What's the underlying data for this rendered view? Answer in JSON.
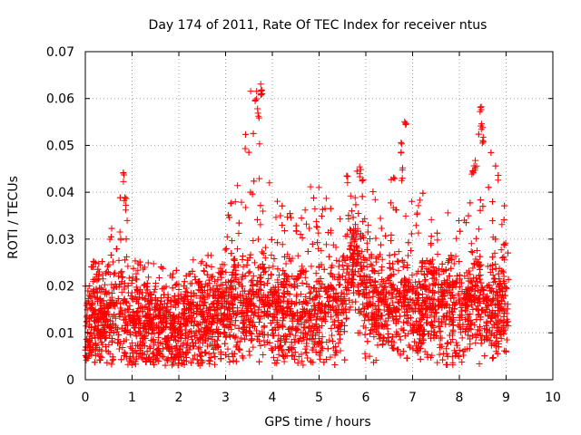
{
  "chart_data": {
    "type": "scatter",
    "marker": "plus",
    "title": "Day 174 of 2011, Rate Of TEC Index for receiver ntus",
    "xlabel": "GPS time / hours",
    "ylabel": "ROTI / TECUs",
    "xlim": [
      0,
      10
    ],
    "ylim": [
      0,
      0.07
    ],
    "xticks": [
      "0",
      "1",
      "2",
      "3",
      "4",
      "5",
      "6",
      "7",
      "8",
      "9",
      "10"
    ],
    "yticks": [
      "0",
      "0.01",
      "0.02",
      "0.03",
      "0.04",
      "0.05",
      "0.06",
      "0.07"
    ],
    "grid": true,
    "series": [
      {
        "name": "ROTI",
        "color": "#ff0000",
        "x_range": [
          0.0,
          9.05
        ],
        "approx_points": 5000,
        "envelope": {
          "x": [
            0.0,
            0.5,
            0.8,
            1.0,
            1.5,
            2.0,
            2.5,
            2.8,
            3.0,
            3.5,
            3.75,
            4.0,
            4.5,
            5.0,
            5.5,
            5.65,
            5.8,
            6.0,
            6.5,
            6.75,
            7.0,
            7.5,
            8.0,
            8.3,
            8.5,
            9.0,
            9.05
          ],
          "median": [
            0.012,
            0.013,
            0.014,
            0.012,
            0.011,
            0.011,
            0.012,
            0.013,
            0.014,
            0.016,
            0.017,
            0.015,
            0.013,
            0.014,
            0.014,
            0.022,
            0.025,
            0.018,
            0.014,
            0.015,
            0.015,
            0.015,
            0.015,
            0.016,
            0.016,
            0.015,
            0.015
          ],
          "upper": [
            0.023,
            0.03,
            0.044,
            0.03,
            0.02,
            0.021,
            0.025,
            0.035,
            0.036,
            0.062,
            0.064,
            0.045,
            0.038,
            0.043,
            0.035,
            0.045,
            0.046,
            0.042,
            0.042,
            0.051,
            0.045,
            0.036,
            0.036,
            0.047,
            0.059,
            0.036,
            0.03
          ]
        },
        "spikes": [
          {
            "x": 0.82,
            "y": 0.0445
          },
          {
            "x": 0.85,
            "y": 0.039
          },
          {
            "x": 3.65,
            "y": 0.062
          },
          {
            "x": 3.75,
            "y": 0.0635
          },
          {
            "x": 3.78,
            "y": 0.064
          },
          {
            "x": 3.7,
            "y": 0.058
          },
          {
            "x": 6.85,
            "y": 0.0565
          },
          {
            "x": 6.75,
            "y": 0.051
          },
          {
            "x": 6.78,
            "y": 0.0455
          },
          {
            "x": 8.3,
            "y": 0.047
          },
          {
            "x": 8.35,
            "y": 0.0475
          },
          {
            "x": 8.45,
            "y": 0.0585
          },
          {
            "x": 8.48,
            "y": 0.056
          },
          {
            "x": 8.5,
            "y": 0.052
          },
          {
            "x": 5.6,
            "y": 0.045
          },
          {
            "x": 5.88,
            "y": 0.046
          }
        ]
      }
    ]
  }
}
